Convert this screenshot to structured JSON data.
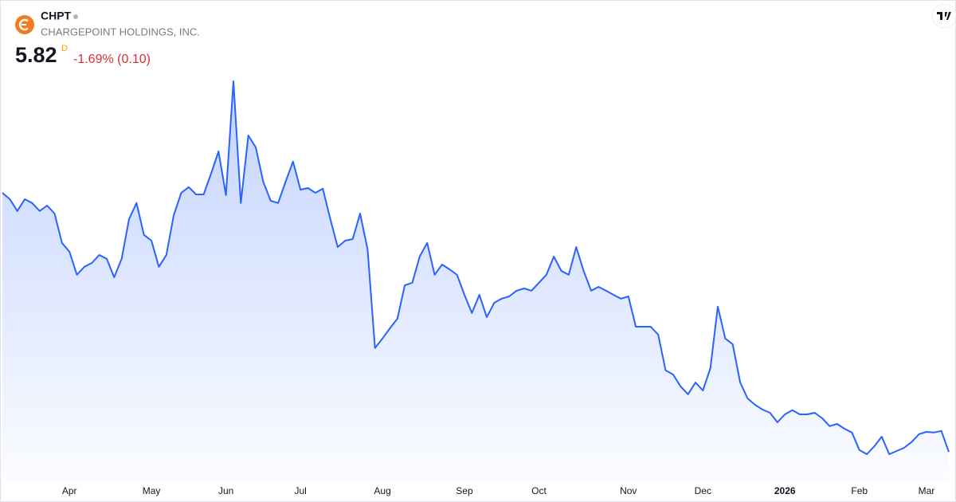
{
  "chart_data": {
    "type": "line",
    "symbol": "CHPT",
    "name": "CHARGEPOINT HOLDINGS, INC.",
    "price": "5.82",
    "interval": "D",
    "change": "-1.69% (0.10)",
    "color": "#2962ff",
    "categories": [
      null,
      null,
      null,
      null,
      null,
      null,
      null,
      null,
      null,
      "Apr",
      null,
      null,
      null,
      null,
      null,
      null,
      null,
      null,
      null,
      null,
      "May",
      null,
      null,
      null,
      null,
      null,
      null,
      null,
      null,
      null,
      "Jun",
      null,
      null,
      null,
      null,
      null,
      null,
      null,
      null,
      null,
      "Jul",
      null,
      null,
      null,
      null,
      null,
      null,
      null,
      null,
      null,
      null,
      "Aug",
      null,
      null,
      null,
      null,
      null,
      null,
      null,
      null,
      null,
      null,
      "Sep",
      null,
      null,
      null,
      null,
      null,
      null,
      null,
      null,
      null,
      "Oct",
      null,
      null,
      null,
      null,
      null,
      null,
      null,
      null,
      null,
      null,
      null,
      "Nov",
      null,
      null,
      null,
      null,
      null,
      null,
      null,
      null,
      null,
      "Dec",
      null,
      null,
      null,
      null,
      null,
      null,
      null,
      null,
      null,
      null,
      "2026",
      null,
      null,
      null,
      null,
      null,
      null,
      null,
      null,
      null,
      "Feb",
      null,
      null,
      null,
      null,
      null,
      null,
      null,
      null,
      "Mar",
      null,
      null,
      null
    ],
    "values": [
      13.95,
      13.75,
      13.38,
      13.75,
      13.63,
      13.38,
      13.55,
      13.3,
      12.38,
      12.1,
      11.38,
      11.63,
      11.75,
      12.0,
      11.88,
      11.3,
      11.88,
      13.13,
      13.63,
      12.63,
      12.45,
      11.63,
      12.0,
      13.25,
      13.95,
      14.13,
      13.9,
      13.9,
      14.55,
      15.25,
      13.88,
      17.45,
      13.63,
      15.75,
      15.38,
      14.3,
      13.7,
      13.63,
      14.3,
      14.93,
      14.05,
      14.1,
      13.95,
      14.08,
      13.13,
      12.25,
      12.45,
      12.5,
      13.3,
      12.18,
      9.08,
      9.38,
      9.7,
      10.0,
      11.05,
      11.13,
      11.95,
      12.38,
      11.38,
      11.7,
      11.55,
      11.38,
      10.75,
      10.18,
      10.75,
      10.05,
      10.5,
      10.63,
      10.7,
      10.88,
      10.95,
      10.88,
      11.13,
      11.38,
      11.95,
      11.5,
      11.38,
      12.25,
      11.5,
      10.88,
      11.0,
      10.88,
      10.75,
      10.63,
      10.7,
      9.75,
      9.75,
      9.75,
      9.5,
      8.38,
      8.25,
      7.88,
      7.63,
      8.0,
      7.75,
      8.45,
      10.38,
      9.38,
      9.2,
      8.0,
      7.5,
      7.3,
      7.15,
      7.05,
      6.75,
      7.0,
      7.13,
      7.0,
      7.0,
      7.05,
      6.88,
      6.63,
      6.7,
      6.55,
      6.43,
      5.88,
      5.75,
      6.0,
      6.3,
      5.75,
      5.85,
      5.95,
      6.13,
      6.38,
      6.45,
      6.43,
      6.48,
      5.82
    ],
    "ylim": [
      5,
      19
    ]
  }
}
